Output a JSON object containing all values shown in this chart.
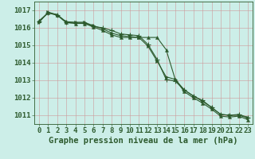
{
  "xlabel": "Graphe pression niveau de la mer (hPa)",
  "bg_color": "#cceee8",
  "grid_color": "#cc9999",
  "line_color": "#2d5a2d",
  "x": [
    0,
    1,
    2,
    3,
    4,
    5,
    6,
    7,
    8,
    9,
    10,
    11,
    12,
    13,
    14,
    15,
    16,
    17,
    18,
    19,
    20,
    21,
    22,
    23
  ],
  "line1": [
    1016.4,
    1016.85,
    1016.75,
    1016.3,
    1016.25,
    1016.25,
    1016.05,
    1015.85,
    1015.6,
    1015.45,
    1015.45,
    1015.45,
    1015.45,
    1015.45,
    1014.75,
    1013.05,
    1012.35,
    1012.0,
    1011.7,
    1011.35,
    1010.95,
    1010.9,
    1010.95,
    1010.75
  ],
  "line2": [
    1016.35,
    1016.85,
    1016.72,
    1016.3,
    1016.28,
    1016.28,
    1016.08,
    1016.0,
    1015.85,
    1015.65,
    1015.6,
    1015.55,
    1015.05,
    1014.2,
    1013.05,
    1012.95,
    1012.45,
    1012.1,
    1011.85,
    1011.45,
    1011.05,
    1011.0,
    1011.05,
    1010.88
  ],
  "line3": [
    1016.3,
    1016.9,
    1016.75,
    1016.35,
    1016.32,
    1016.32,
    1016.12,
    1015.95,
    1015.7,
    1015.55,
    1015.5,
    1015.45,
    1014.95,
    1014.1,
    1013.2,
    1013.05,
    1012.45,
    1012.1,
    1011.8,
    1011.45,
    1011.05,
    1011.0,
    1011.0,
    1010.85
  ],
  "ylim": [
    1010.5,
    1017.5
  ],
  "yticks": [
    1011,
    1012,
    1013,
    1014,
    1015,
    1016,
    1017
  ],
  "xtick_labels": [
    "0",
    "1",
    "2",
    "3",
    "4",
    "5",
    "6",
    "7",
    "8",
    "9",
    "10",
    "11",
    "12",
    "13",
    "14",
    "15",
    "16",
    "17",
    "18",
    "19",
    "20",
    "21",
    "22",
    "23"
  ],
  "marker_size": 3,
  "linewidth": 0.8,
  "tick_fontsize": 6.5,
  "xlabel_fontsize": 7.5
}
